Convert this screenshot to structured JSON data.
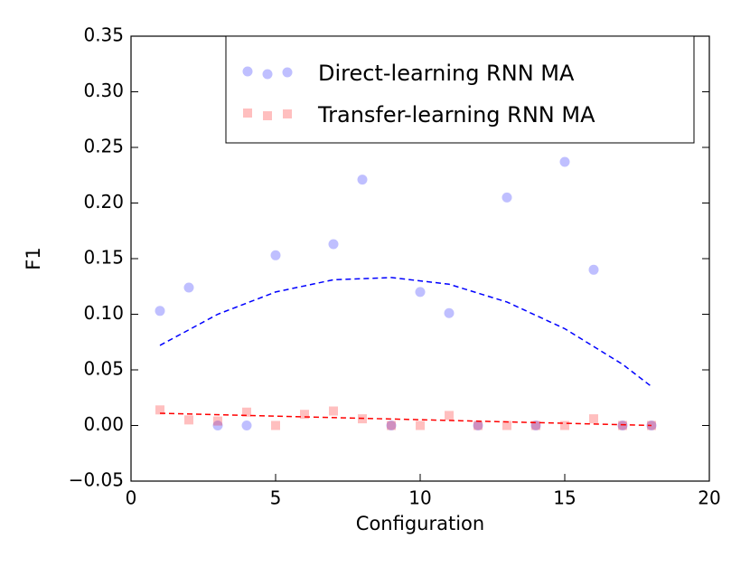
{
  "chart_data": {
    "type": "scatter",
    "xlabel": "Configuration",
    "ylabel": "F1",
    "xlim": [
      0,
      20
    ],
    "xticks": [
      0,
      5,
      10,
      15,
      20
    ],
    "ylim": [
      -0.05,
      0.35
    ],
    "yticks": [
      {
        "value": -0.05,
        "label": "−0.05"
      },
      {
        "value": 0,
        "label": "0.00"
      },
      {
        "value": 0.05,
        "label": "0.05"
      },
      {
        "value": 0.1,
        "label": "0.10"
      },
      {
        "value": 0.15,
        "label": "0.15"
      },
      {
        "value": 0.2,
        "label": "0.20"
      },
      {
        "value": 0.25,
        "label": "0.25"
      },
      {
        "value": 0.3,
        "label": "0.30"
      },
      {
        "value": 0.35,
        "label": "0.35"
      }
    ],
    "legend": "upper right",
    "series": [
      {
        "name": "Direct-learning RNN MA",
        "color": "#0000ff",
        "marker": "circle",
        "x": [
          1,
          2,
          3,
          4,
          5,
          7,
          8,
          9,
          10,
          11,
          12,
          13,
          14,
          15,
          16,
          17,
          18
        ],
        "values": [
          0.103,
          0.124,
          0,
          0,
          0.153,
          0.163,
          0.221,
          0,
          0.12,
          0.101,
          0,
          0.205,
          0,
          0.237,
          0.14,
          0,
          0
        ],
        "fit": {
          "x": [
            1,
            3,
            5,
            7,
            9,
            11,
            13,
            15,
            17,
            18
          ],
          "values": [
            0.072,
            0.1,
            0.12,
            0.131,
            0.133,
            0.127,
            0.111,
            0.087,
            0.055,
            0.035
          ]
        }
      },
      {
        "name": "Transfer-learning RNN MA",
        "color": "#ff0000",
        "marker": "square",
        "x": [
          1,
          2,
          3,
          4,
          5,
          6,
          7,
          8,
          9,
          10,
          11,
          12,
          13,
          14,
          15,
          16,
          17,
          18
        ],
        "values": [
          0.014,
          0.005,
          0.004,
          0.012,
          0,
          0.01,
          0.013,
          0.006,
          0,
          0,
          0.009,
          0,
          0,
          0,
          0,
          0.006,
          0,
          0
        ],
        "fit": {
          "x": [
            1,
            18
          ],
          "values": [
            0.011,
            0
          ]
        }
      }
    ]
  }
}
